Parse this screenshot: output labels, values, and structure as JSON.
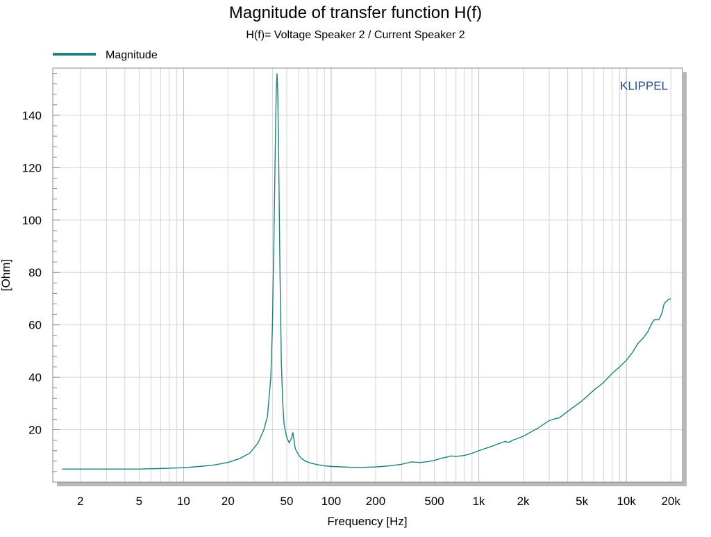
{
  "colors": {
    "series": "#1f7f7f",
    "grid": "#d4d4d4",
    "watermark": "#2b4a8a",
    "axis": "#888888",
    "shadow": "#b8b8b8"
  },
  "chart_data": {
    "type": "line",
    "title": "Magnitude of transfer function H(f)",
    "subtitle": "H(f)= Voltage Speaker 2 / Current Speaker 2",
    "xlabel": "Frequency [Hz]",
    "ylabel": "[Ohm]",
    "xscale": "log",
    "xlim": [
      1.3,
      24000
    ],
    "ylim": [
      0,
      158
    ],
    "grid": true,
    "legend_position": "top-left",
    "watermark": "KLIPPEL",
    "x_ticks": [
      {
        "value": 2,
        "label": "2"
      },
      {
        "value": 5,
        "label": "5"
      },
      {
        "value": 10,
        "label": "10"
      },
      {
        "value": 20,
        "label": "20"
      },
      {
        "value": 50,
        "label": "50"
      },
      {
        "value": 100,
        "label": "100"
      },
      {
        "value": 200,
        "label": "200"
      },
      {
        "value": 500,
        "label": "500"
      },
      {
        "value": 1000,
        "label": "1k"
      },
      {
        "value": 2000,
        "label": "2k"
      },
      {
        "value": 5000,
        "label": "5k"
      },
      {
        "value": 10000,
        "label": "10k"
      },
      {
        "value": 20000,
        "label": "20k"
      }
    ],
    "y_ticks": [
      {
        "value": 20,
        "label": "20"
      },
      {
        "value": 40,
        "label": "40"
      },
      {
        "value": 60,
        "label": "60"
      },
      {
        "value": 80,
        "label": "80"
      },
      {
        "value": 100,
        "label": "100"
      },
      {
        "value": 120,
        "label": "120"
      },
      {
        "value": 140,
        "label": "140"
      }
    ],
    "series": [
      {
        "name": "Magnitude",
        "x": [
          1.5,
          2,
          3,
          5,
          7,
          10,
          13,
          16,
          20,
          24,
          28,
          32,
          35,
          37,
          39,
          40,
          41,
          42,
          42.5,
          43,
          43.5,
          44,
          45,
          46,
          47,
          48,
          50,
          52,
          54,
          55,
          56,
          57,
          58,
          60,
          63,
          67,
          72,
          80,
          90,
          100,
          130,
          160,
          200,
          250,
          300,
          350,
          400,
          450,
          500,
          550,
          600,
          650,
          700,
          800,
          900,
          1000,
          1200,
          1500,
          1600,
          1700,
          1800,
          2000,
          2500,
          3000,
          3300,
          3500,
          4000,
          5000,
          6000,
          7000,
          8000,
          9000,
          10000,
          11000,
          12000,
          13000,
          14000,
          15000,
          15500,
          16500,
          17000,
          17500,
          18000,
          19000,
          20000
        ],
        "y": [
          5,
          5,
          5,
          5,
          5.2,
          5.5,
          6,
          6.5,
          7.5,
          9,
          11,
          15,
          20,
          25,
          40,
          60,
          95,
          135,
          150,
          156,
          148,
          128,
          80,
          45,
          30,
          22,
          17,
          15,
          17,
          19,
          16,
          13,
          12,
          10.5,
          9,
          8,
          7.3,
          6.7,
          6.2,
          6,
          5.7,
          5.6,
          5.8,
          6.2,
          6.8,
          7.7,
          7.5,
          7.8,
          8.3,
          9,
          9.5,
          10,
          9.8,
          10.2,
          11,
          12,
          13.5,
          15.5,
          15.2,
          16,
          16.5,
          17.5,
          20.5,
          23.5,
          24.2,
          24.5,
          27,
          31,
          35,
          38,
          41.5,
          44,
          46.5,
          49.5,
          53,
          55,
          57.5,
          61,
          62,
          62,
          63,
          65,
          68,
          69.5,
          70
        ]
      }
    ]
  }
}
